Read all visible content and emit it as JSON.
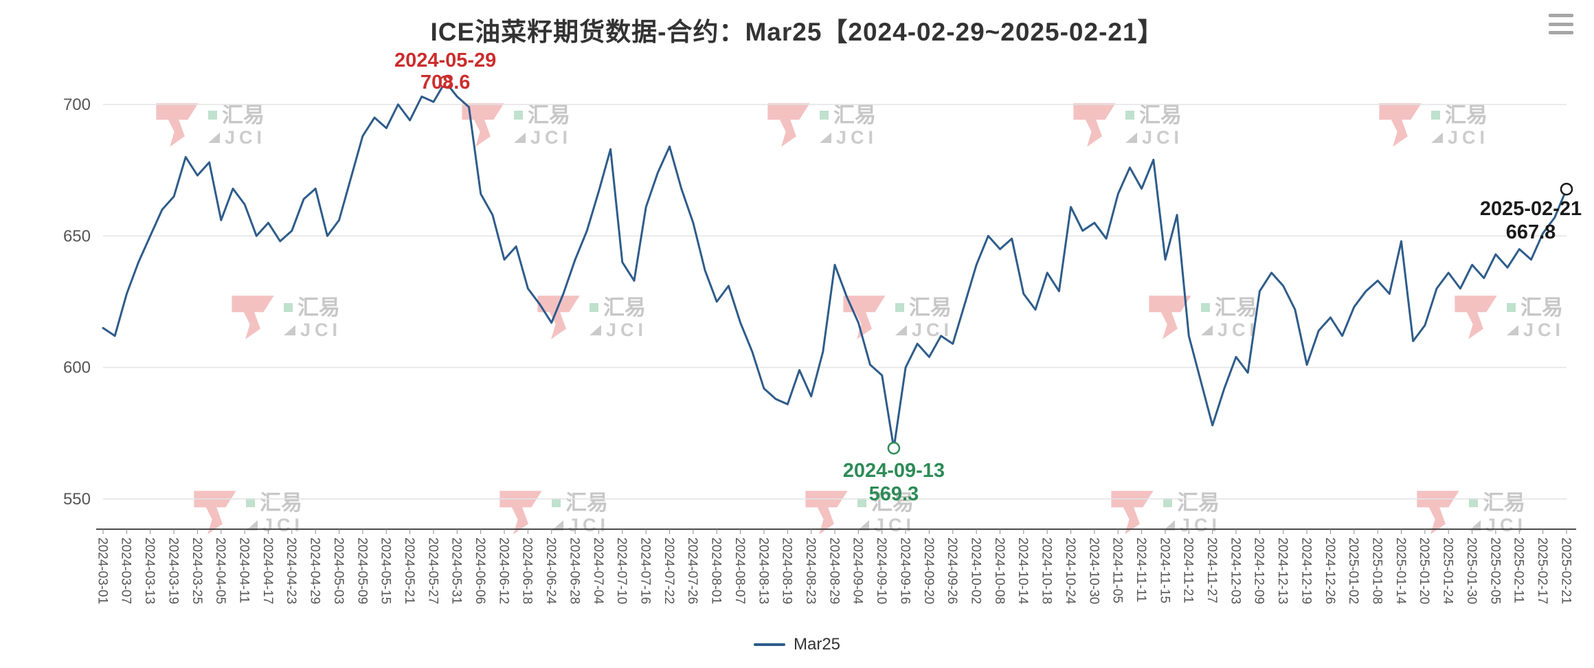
{
  "title": "ICE油菜籽期货数据-合约：Mar25【2024-02-29~2025-02-21】",
  "toolbox": {
    "menu_icon": "hamburger-menu"
  },
  "legend": {
    "label": "Mar25"
  },
  "watermark": {
    "cn": "汇易",
    "en": "JCI"
  },
  "colors": {
    "line": "#2e5c8a",
    "grid": "#e4e4e4",
    "axis": "#4a4a4a",
    "axis_label": "#555555",
    "title": "#333333",
    "max_annotation": "#cc2d2d",
    "min_annotation": "#2e8b57",
    "last_annotation": "#1a1a1a",
    "watermark_red": "#ec8f8f"
  },
  "annotations": {
    "max": {
      "date": "2024-05-29",
      "value": "708.6"
    },
    "min": {
      "date": "2024-09-13",
      "value": "569.3"
    },
    "last": {
      "date": "2025-02-21",
      "value": "667.8"
    }
  },
  "chart_data": {
    "type": "line",
    "title": "ICE油菜籽期货数据-合约：Mar25【2024-02-29~2025-02-21】",
    "series_name": "Mar25",
    "x_range": [
      "2024-02-29",
      "2025-02-21"
    ],
    "x_tick_labels": [
      "2024-03-01",
      "2024-03-07",
      "2024-03-13",
      "2024-03-19",
      "2024-03-25",
      "2024-04-05",
      "2024-04-11",
      "2024-04-17",
      "2024-04-23",
      "2024-04-29",
      "2024-05-03",
      "2024-05-09",
      "2024-05-15",
      "2024-05-21",
      "2024-05-27",
      "2024-05-31",
      "2024-06-06",
      "2024-06-12",
      "2024-06-18",
      "2024-06-24",
      "2024-06-28",
      "2024-07-04",
      "2024-07-10",
      "2024-07-16",
      "2024-07-22",
      "2024-07-26",
      "2024-08-01",
      "2024-08-07",
      "2024-08-13",
      "2024-08-19",
      "2024-08-23",
      "2024-08-29",
      "2024-09-04",
      "2024-09-10",
      "2024-09-16",
      "2024-09-20",
      "2024-09-26",
      "2024-10-02",
      "2024-10-08",
      "2024-10-14",
      "2024-10-18",
      "2024-10-24",
      "2024-10-30",
      "2024-11-05",
      "2024-11-11",
      "2024-11-15",
      "2024-11-21",
      "2024-11-27",
      "2024-12-03",
      "2024-12-09",
      "2024-12-13",
      "2024-12-19",
      "2024-12-26",
      "2025-01-02",
      "2025-01-08",
      "2025-01-14",
      "2025-01-20",
      "2025-01-24",
      "2025-01-30",
      "2025-02-05",
      "2025-02-11",
      "2025-02-17",
      "2025-02-21"
    ],
    "points_per_tick": 2,
    "values": [
      615,
      612,
      628,
      640,
      650,
      660,
      665,
      680,
      673,
      678,
      656,
      668,
      662,
      650,
      655,
      648,
      652,
      664,
      668,
      650,
      656,
      672,
      688,
      695,
      691,
      700,
      694,
      703,
      701,
      708.6,
      703,
      699,
      666,
      658,
      641,
      646,
      630,
      624,
      617,
      628,
      641,
      652,
      667,
      683,
      640,
      633,
      661,
      674,
      684,
      668,
      655,
      637,
      625,
      631,
      617,
      606,
      592,
      588,
      586,
      599,
      589,
      606,
      639,
      627,
      617,
      601,
      597,
      569.3,
      600,
      609,
      604,
      612,
      609,
      624,
      639,
      650,
      645,
      649,
      628,
      622,
      636,
      629,
      661,
      652,
      655,
      649,
      666,
      676,
      668,
      679,
      641,
      658,
      612,
      595,
      578,
      592,
      604,
      598,
      629,
      636,
      631,
      622,
      601,
      614,
      619,
      612,
      623,
      629,
      633,
      628,
      648,
      610,
      616,
      630,
      636,
      630,
      639,
      634,
      643,
      638,
      645,
      641,
      651,
      657,
      667.8
    ],
    "y_ticks": [
      550,
      600,
      650,
      700
    ],
    "ylim": [
      538,
      712
    ],
    "grid": true,
    "legend_position": "bottom",
    "max_point": {
      "date": "2024-05-29",
      "value": 708.6
    },
    "min_point": {
      "date": "2024-09-13",
      "value": 569.3
    },
    "last_point": {
      "date": "2025-02-21",
      "value": 667.8
    }
  }
}
